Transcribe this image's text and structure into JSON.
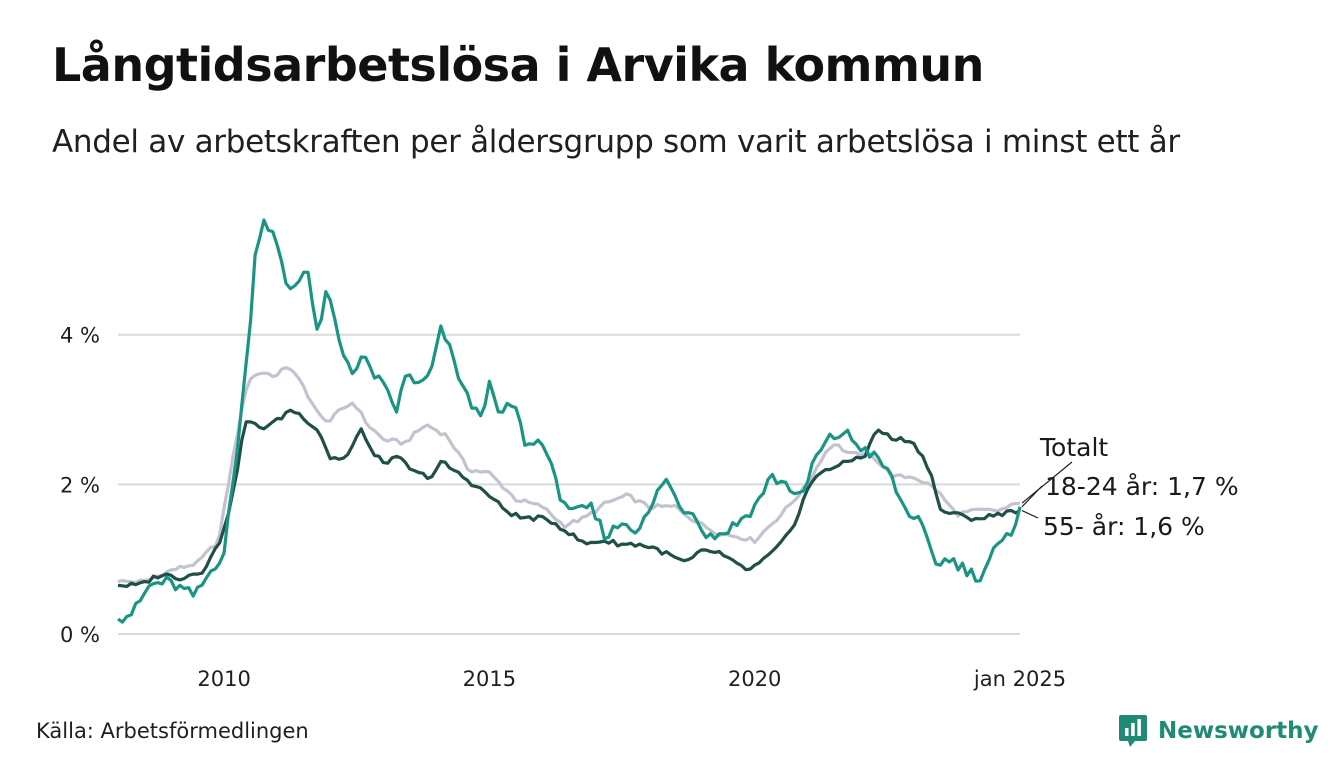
{
  "title": "Långtidsarbetslösa i Arvika kommun",
  "subtitle": "Andel av arbetskraften per åldersgrupp som varit arbetslösa i minst ett år",
  "source": "Källa: Arbetsförmedlingen",
  "brand": {
    "name": "Newsworthy",
    "icon": "newsworthy-logo-icon",
    "color": "#1f8a76"
  },
  "chart_data": {
    "type": "line",
    "x_start": 2008.0,
    "x_end": 2025.0,
    "x_step_months": 1,
    "xlim": [
      2008.0,
      2025.0
    ],
    "ylim": [
      0,
      5.8
    ],
    "grid": true,
    "x_ticks": [
      {
        "value": 2010,
        "label": "2010"
      },
      {
        "value": 2015,
        "label": "2015"
      },
      {
        "value": 2020,
        "label": "2020"
      },
      {
        "value": 2025,
        "label": "jan 2025"
      }
    ],
    "y_ticks": [
      {
        "value": 0,
        "label": "0 %"
      },
      {
        "value": 2,
        "label": "2 %"
      },
      {
        "value": 4,
        "label": "4 %"
      }
    ],
    "series": [
      {
        "name": "Totalt",
        "color": "#c3c2ce",
        "label": "Totalt",
        "anchors": [
          [
            2008.0,
            0.7
          ],
          [
            2008.5,
            0.7
          ],
          [
            2009.0,
            0.85
          ],
          [
            2009.5,
            0.95
          ],
          [
            2009.9,
            1.25
          ],
          [
            2010.2,
            2.5
          ],
          [
            2010.45,
            3.4
          ],
          [
            2010.7,
            3.5
          ],
          [
            2011.0,
            3.45
          ],
          [
            2011.2,
            3.6
          ],
          [
            2011.5,
            3.3
          ],
          [
            2011.8,
            2.9
          ],
          [
            2012.0,
            2.85
          ],
          [
            2012.2,
            3.0
          ],
          [
            2012.45,
            3.1
          ],
          [
            2012.7,
            2.8
          ],
          [
            2013.0,
            2.6
          ],
          [
            2013.4,
            2.55
          ],
          [
            2013.8,
            2.8
          ],
          [
            2014.2,
            2.65
          ],
          [
            2014.6,
            2.2
          ],
          [
            2015.0,
            2.15
          ],
          [
            2015.5,
            1.8
          ],
          [
            2016.0,
            1.7
          ],
          [
            2016.4,
            1.45
          ],
          [
            2016.8,
            1.55
          ],
          [
            2017.2,
            1.75
          ],
          [
            2017.6,
            1.85
          ],
          [
            2018.0,
            1.7
          ],
          [
            2018.5,
            1.7
          ],
          [
            2018.9,
            1.5
          ],
          [
            2019.3,
            1.35
          ],
          [
            2019.7,
            1.3
          ],
          [
            2020.0,
            1.25
          ],
          [
            2020.5,
            1.6
          ],
          [
            2021.0,
            2.0
          ],
          [
            2021.3,
            2.4
          ],
          [
            2021.5,
            2.55
          ],
          [
            2021.8,
            2.4
          ],
          [
            2022.2,
            2.4
          ],
          [
            2022.6,
            2.1
          ],
          [
            2023.0,
            2.1
          ],
          [
            2023.4,
            1.95
          ],
          [
            2023.8,
            1.6
          ],
          [
            2024.2,
            1.65
          ],
          [
            2024.6,
            1.65
          ],
          [
            2025.0,
            1.75
          ]
        ]
      },
      {
        "name": "18-24 år",
        "color": "#1b9583",
        "label": "18-24 år: 1,7 %",
        "anchors": [
          [
            2008.0,
            0.2
          ],
          [
            2008.3,
            0.3
          ],
          [
            2008.6,
            0.65
          ],
          [
            2008.9,
            0.7
          ],
          [
            2009.2,
            0.6
          ],
          [
            2009.45,
            0.5
          ],
          [
            2009.8,
            0.9
          ],
          [
            2010.0,
            1.1
          ],
          [
            2010.2,
            2.2
          ],
          [
            2010.45,
            3.8
          ],
          [
            2010.6,
            5.2
          ],
          [
            2010.75,
            5.55
          ],
          [
            2010.95,
            5.3
          ],
          [
            2011.2,
            4.6
          ],
          [
            2011.4,
            4.7
          ],
          [
            2011.55,
            5.0
          ],
          [
            2011.75,
            4.0
          ],
          [
            2011.95,
            4.6
          ],
          [
            2012.2,
            3.8
          ],
          [
            2012.45,
            3.5
          ],
          [
            2012.6,
            3.7
          ],
          [
            2012.8,
            3.5
          ],
          [
            2013.0,
            3.3
          ],
          [
            2013.25,
            3.0
          ],
          [
            2013.45,
            3.5
          ],
          [
            2013.7,
            3.3
          ],
          [
            2013.9,
            3.5
          ],
          [
            2014.1,
            4.1
          ],
          [
            2014.3,
            3.7
          ],
          [
            2014.55,
            3.2
          ],
          [
            2014.8,
            2.9
          ],
          [
            2015.0,
            3.3
          ],
          [
            2015.2,
            2.9
          ],
          [
            2015.45,
            3.1
          ],
          [
            2015.7,
            2.5
          ],
          [
            2016.0,
            2.6
          ],
          [
            2016.3,
            1.9
          ],
          [
            2016.6,
            1.6
          ],
          [
            2016.9,
            1.7
          ],
          [
            2017.2,
            1.3
          ],
          [
            2017.5,
            1.5
          ],
          [
            2017.8,
            1.4
          ],
          [
            2018.0,
            1.6
          ],
          [
            2018.3,
            2.1
          ],
          [
            2018.6,
            1.7
          ],
          [
            2018.9,
            1.6
          ],
          [
            2019.1,
            1.3
          ],
          [
            2019.4,
            1.35
          ],
          [
            2019.7,
            1.5
          ],
          [
            2020.0,
            1.7
          ],
          [
            2020.3,
            2.1
          ],
          [
            2020.6,
            2.0
          ],
          [
            2020.9,
            1.8
          ],
          [
            2021.1,
            2.3
          ],
          [
            2021.4,
            2.6
          ],
          [
            2021.7,
            2.7
          ],
          [
            2021.9,
            2.55
          ],
          [
            2022.2,
            2.4
          ],
          [
            2022.5,
            2.2
          ],
          [
            2022.8,
            1.7
          ],
          [
            2023.1,
            1.5
          ],
          [
            2023.4,
            0.95
          ],
          [
            2023.7,
            1.0
          ],
          [
            2024.0,
            0.85
          ],
          [
            2024.25,
            0.75
          ],
          [
            2024.5,
            1.1
          ],
          [
            2024.8,
            1.3
          ],
          [
            2025.0,
            1.7
          ]
        ]
      },
      {
        "name": "55- år",
        "color": "#1f4f47",
        "label": "55- år: 1,6 %",
        "anchors": [
          [
            2008.0,
            0.65
          ],
          [
            2008.4,
            0.65
          ],
          [
            2008.8,
            0.8
          ],
          [
            2009.2,
            0.75
          ],
          [
            2009.6,
            0.85
          ],
          [
            2009.9,
            1.2
          ],
          [
            2010.15,
            1.8
          ],
          [
            2010.4,
            2.85
          ],
          [
            2010.7,
            2.75
          ],
          [
            2011.0,
            2.85
          ],
          [
            2011.25,
            3.0
          ],
          [
            2011.5,
            2.9
          ],
          [
            2011.8,
            2.7
          ],
          [
            2012.0,
            2.35
          ],
          [
            2012.3,
            2.35
          ],
          [
            2012.6,
            2.75
          ],
          [
            2012.8,
            2.4
          ],
          [
            2013.0,
            2.3
          ],
          [
            2013.3,
            2.35
          ],
          [
            2013.6,
            2.15
          ],
          [
            2013.9,
            2.1
          ],
          [
            2014.1,
            2.3
          ],
          [
            2014.4,
            2.15
          ],
          [
            2014.7,
            2.0
          ],
          [
            2015.0,
            1.85
          ],
          [
            2015.3,
            1.65
          ],
          [
            2015.6,
            1.55
          ],
          [
            2015.9,
            1.55
          ],
          [
            2016.2,
            1.5
          ],
          [
            2016.5,
            1.35
          ],
          [
            2016.8,
            1.2
          ],
          [
            2017.1,
            1.25
          ],
          [
            2017.5,
            1.2
          ],
          [
            2017.8,
            1.2
          ],
          [
            2018.1,
            1.15
          ],
          [
            2018.4,
            1.05
          ],
          [
            2018.7,
            0.95
          ],
          [
            2019.0,
            1.1
          ],
          [
            2019.3,
            1.1
          ],
          [
            2019.6,
            0.95
          ],
          [
            2019.9,
            0.85
          ],
          [
            2020.2,
            1.0
          ],
          [
            2020.5,
            1.2
          ],
          [
            2020.8,
            1.55
          ],
          [
            2021.0,
            1.95
          ],
          [
            2021.3,
            2.2
          ],
          [
            2021.6,
            2.25
          ],
          [
            2021.9,
            2.35
          ],
          [
            2022.1,
            2.4
          ],
          [
            2022.3,
            2.75
          ],
          [
            2022.6,
            2.6
          ],
          [
            2022.9,
            2.6
          ],
          [
            2023.1,
            2.45
          ],
          [
            2023.3,
            2.2
          ],
          [
            2023.5,
            1.65
          ],
          [
            2023.8,
            1.6
          ],
          [
            2024.0,
            1.55
          ],
          [
            2024.3,
            1.55
          ],
          [
            2024.6,
            1.6
          ],
          [
            2024.8,
            1.65
          ],
          [
            2025.0,
            1.65
          ]
        ]
      }
    ]
  }
}
